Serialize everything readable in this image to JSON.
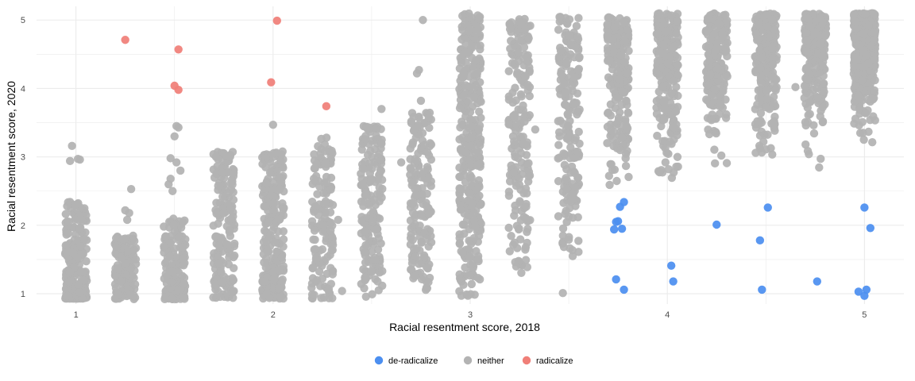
{
  "chart_data": {
    "type": "scatter",
    "title": "",
    "xlabel": "Racial resentment score, 2018",
    "ylabel": "Racial resentment score, 2020",
    "xlim": [
      0.8,
      5.2
    ],
    "ylim": [
      0.85,
      5.2
    ],
    "x_ticks": [
      "1",
      "2",
      "3",
      "4",
      "5"
    ],
    "y_ticks": [
      "1",
      "2",
      "3",
      "4",
      "5"
    ],
    "grid": true,
    "jitter": true,
    "legend_position": "bottom",
    "series": [
      {
        "name": "de-radicalize",
        "color": "#4c8ff0",
        "points": [
          [
            3.74,
            2.05
          ],
          [
            3.75,
            2.06
          ],
          [
            3.73,
            1.94
          ],
          [
            3.77,
            1.95
          ],
          [
            3.76,
            2.27
          ],
          [
            3.78,
            2.34
          ],
          [
            3.74,
            1.21
          ],
          [
            3.78,
            1.06
          ],
          [
            4.02,
            1.41
          ],
          [
            4.03,
            1.18
          ],
          [
            4.25,
            2.01
          ],
          [
            4.51,
            2.26
          ],
          [
            4.47,
            1.78
          ],
          [
            4.48,
            1.06
          ],
          [
            4.76,
            1.18
          ],
          [
            5.0,
            2.26
          ],
          [
            5.03,
            1.96
          ],
          [
            4.97,
            1.03
          ],
          [
            5.0,
            0.97
          ],
          [
            5.01,
            1.06
          ]
        ]
      },
      {
        "name": "neither",
        "color": "#b3b3b3",
        "clusters": [
          {
            "x": 1.0,
            "ymin": 0.93,
            "ymax": 2.35,
            "n": 260,
            "bottom_weight": 2.2,
            "extra": [
              [
                0.98,
                3.16
              ],
              [
                0.97,
                2.94
              ],
              [
                1.02,
                2.96
              ],
              [
                1.01,
                2.97
              ]
            ]
          },
          {
            "x": 1.25,
            "ymin": 0.92,
            "ymax": 1.85,
            "n": 120,
            "bottom_weight": 1.6,
            "extra": [
              [
                1.28,
                2.53
              ],
              [
                1.25,
                2.22
              ],
              [
                1.27,
                2.18
              ],
              [
                1.26,
                2.08
              ]
            ]
          },
          {
            "x": 1.5,
            "ymin": 0.92,
            "ymax": 2.1,
            "n": 150,
            "bottom_weight": 1.6,
            "extra": [
              [
                1.51,
                3.45
              ],
              [
                1.52,
                3.43
              ],
              [
                1.5,
                3.3
              ],
              [
                1.48,
                2.98
              ],
              [
                1.51,
                2.92
              ],
              [
                1.48,
                2.68
              ],
              [
                1.47,
                2.6
              ],
              [
                1.49,
                2.5
              ],
              [
                1.53,
                2.8
              ]
            ]
          },
          {
            "x": 1.75,
            "ymin": 0.93,
            "ymax": 3.1,
            "n": 170,
            "bottom_weight": 1.3
          },
          {
            "x": 2.0,
            "ymin": 0.93,
            "ymax": 3.1,
            "n": 230,
            "bottom_weight": 1.3,
            "extra": [
              [
                2.0,
                3.47
              ]
            ]
          },
          {
            "x": 2.25,
            "ymin": 0.93,
            "ymax": 3.32,
            "n": 150,
            "bottom_weight": 1.1,
            "extra": [
              [
                2.35,
                1.04
              ],
              [
                2.33,
                2.08
              ]
            ]
          },
          {
            "x": 2.5,
            "ymin": 0.95,
            "ymax": 3.45,
            "n": 170,
            "bottom_weight": 0.9,
            "extra": [
              [
                2.55,
                3.7
              ]
            ]
          },
          {
            "x": 2.75,
            "ymin": 1.05,
            "ymax": 3.65,
            "n": 170,
            "bottom_weight": 0.9,
            "extra": [
              [
                2.76,
                5.0
              ],
              [
                2.74,
                4.27
              ],
              [
                2.73,
                4.22
              ],
              [
                2.75,
                3.82
              ],
              [
                2.65,
                2.92
              ]
            ]
          },
          {
            "x": 3.0,
            "ymin": 0.95,
            "ymax": 5.1,
            "n": 340,
            "bottom_weight": 0.85
          },
          {
            "x": 3.25,
            "ymin": 1.25,
            "ymax": 5.02,
            "n": 200,
            "bottom_weight": 0.75,
            "extra": [
              [
                3.33,
                3.4
              ]
            ]
          },
          {
            "x": 3.5,
            "ymin": 1.5,
            "ymax": 5.06,
            "n": 190,
            "bottom_weight": 0.65,
            "extra": [
              [
                3.47,
                1.01
              ],
              [
                3.52,
                1.55
              ],
              [
                3.5,
                1.79
              ]
            ]
          },
          {
            "x": 3.75,
            "ymin": 2.45,
            "ymax": 5.05,
            "n": 220,
            "bottom_weight": 0.55
          },
          {
            "x": 4.0,
            "ymin": 2.45,
            "ymax": 5.1,
            "n": 260,
            "bottom_weight": 0.45
          },
          {
            "x": 4.25,
            "ymin": 2.8,
            "ymax": 5.1,
            "n": 190,
            "bottom_weight": 0.45
          },
          {
            "x": 4.5,
            "ymin": 2.65,
            "ymax": 5.1,
            "n": 230,
            "bottom_weight": 0.4,
            "extra": [
              [
                4.65,
                4.02
              ]
            ]
          },
          {
            "x": 4.75,
            "ymin": 2.68,
            "ymax": 5.1,
            "n": 240,
            "bottom_weight": 0.35
          },
          {
            "x": 5.0,
            "ymin": 2.9,
            "ymax": 5.1,
            "n": 460,
            "bottom_weight": 0.3
          }
        ]
      },
      {
        "name": "radicalize",
        "color": "#f07f78",
        "points": [
          [
            1.25,
            4.71
          ],
          [
            1.52,
            4.57
          ],
          [
            1.5,
            4.04
          ],
          [
            1.52,
            3.98
          ],
          [
            2.02,
            4.99
          ],
          [
            1.99,
            4.09
          ],
          [
            2.27,
            3.74
          ]
        ]
      }
    ]
  }
}
